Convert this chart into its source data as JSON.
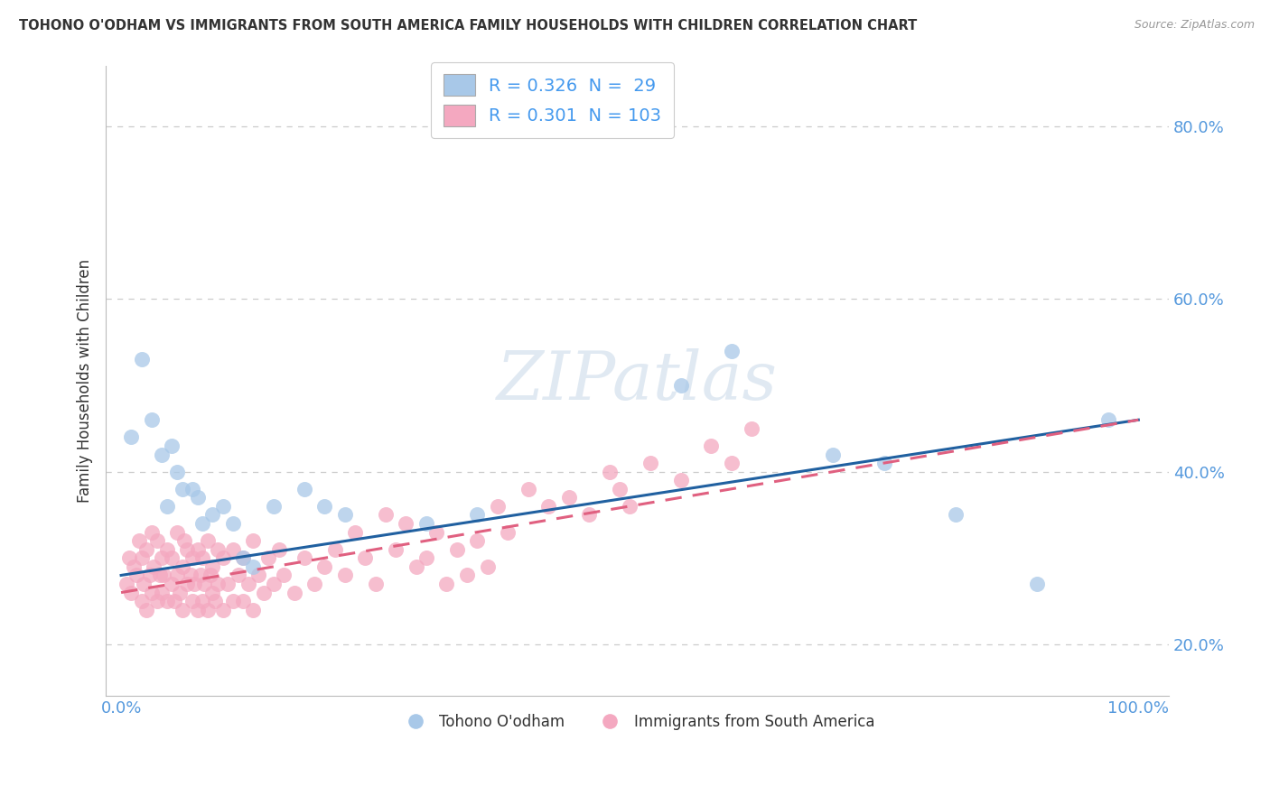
{
  "title": "TOHONO O'ODHAM VS IMMIGRANTS FROM SOUTH AMERICA FAMILY HOUSEHOLDS WITH CHILDREN CORRELATION CHART",
  "source": "Source: ZipAtlas.com",
  "ylabel": "Family Households with Children",
  "r_blue": 0.326,
  "n_blue": 29,
  "r_pink": 0.301,
  "n_pink": 103,
  "legend_label_blue": "Tohono O'odham",
  "legend_label_pink": "Immigrants from South America",
  "color_blue": "#a8c8e8",
  "color_pink": "#f4a8c0",
  "color_blue_line": "#2060a0",
  "color_pink_line": "#e06080",
  "watermark_text": "ZIPatlas",
  "blue_x": [
    1.0,
    2.0,
    3.0,
    4.0,
    4.5,
    5.0,
    5.5,
    6.0,
    7.0,
    7.5,
    8.0,
    9.0,
    10.0,
    11.0,
    12.0,
    13.0,
    15.0,
    18.0,
    20.0,
    22.0,
    30.0,
    35.0,
    55.0,
    60.0,
    70.0,
    75.0,
    82.0,
    90.0,
    97.0
  ],
  "blue_y": [
    44.0,
    53.0,
    46.0,
    42.0,
    36.0,
    43.0,
    40.0,
    38.0,
    38.0,
    37.0,
    34.0,
    35.0,
    36.0,
    34.0,
    30.0,
    29.0,
    36.0,
    38.0,
    36.0,
    35.0,
    34.0,
    35.0,
    50.0,
    54.0,
    42.0,
    41.0,
    35.0,
    27.0,
    46.0
  ],
  "pink_x": [
    0.5,
    0.8,
    1.0,
    1.2,
    1.5,
    1.8,
    2.0,
    2.0,
    2.2,
    2.5,
    2.5,
    2.8,
    3.0,
    3.0,
    3.2,
    3.5,
    3.5,
    3.8,
    4.0,
    4.0,
    4.2,
    4.5,
    4.5,
    5.0,
    5.0,
    5.2,
    5.5,
    5.5,
    5.8,
    6.0,
    6.0,
    6.2,
    6.5,
    6.5,
    6.8,
    7.0,
    7.0,
    7.2,
    7.5,
    7.5,
    7.8,
    8.0,
    8.0,
    8.2,
    8.5,
    8.5,
    8.8,
    9.0,
    9.0,
    9.2,
    9.5,
    9.5,
    10.0,
    10.0,
    10.5,
    11.0,
    11.0,
    11.5,
    12.0,
    12.0,
    12.5,
    13.0,
    13.0,
    13.5,
    14.0,
    14.5,
    15.0,
    15.5,
    16.0,
    17.0,
    18.0,
    19.0,
    20.0,
    21.0,
    22.0,
    23.0,
    24.0,
    25.0,
    26.0,
    27.0,
    28.0,
    29.0,
    30.0,
    31.0,
    32.0,
    33.0,
    34.0,
    35.0,
    36.0,
    37.0,
    38.0,
    40.0,
    42.0,
    44.0,
    46.0,
    48.0,
    49.0,
    50.0,
    52.0,
    55.0,
    58.0,
    60.0,
    62.0
  ],
  "pink_y": [
    27.0,
    30.0,
    26.0,
    29.0,
    28.0,
    32.0,
    25.0,
    30.0,
    27.0,
    24.0,
    31.0,
    28.0,
    26.0,
    33.0,
    29.0,
    25.0,
    32.0,
    28.0,
    26.0,
    30.0,
    28.0,
    25.0,
    31.0,
    27.0,
    30.0,
    25.0,
    28.0,
    33.0,
    26.0,
    29.0,
    24.0,
    32.0,
    27.0,
    31.0,
    28.0,
    25.0,
    30.0,
    27.0,
    24.0,
    31.0,
    28.0,
    25.0,
    30.0,
    27.0,
    24.0,
    32.0,
    28.0,
    26.0,
    29.0,
    25.0,
    31.0,
    27.0,
    24.0,
    30.0,
    27.0,
    25.0,
    31.0,
    28.0,
    25.0,
    30.0,
    27.0,
    24.0,
    32.0,
    28.0,
    26.0,
    30.0,
    27.0,
    31.0,
    28.0,
    26.0,
    30.0,
    27.0,
    29.0,
    31.0,
    28.0,
    33.0,
    30.0,
    27.0,
    35.0,
    31.0,
    34.0,
    29.0,
    30.0,
    33.0,
    27.0,
    31.0,
    28.0,
    32.0,
    29.0,
    36.0,
    33.0,
    38.0,
    36.0,
    37.0,
    35.0,
    40.0,
    38.0,
    36.0,
    41.0,
    39.0,
    43.0,
    41.0,
    45.0
  ],
  "ylim_min": 14.0,
  "ylim_max": 87.0,
  "xlim_min": -1.5,
  "xlim_max": 103.0,
  "yticks": [
    20.0,
    40.0,
    60.0,
    80.0
  ],
  "ytick_labels": [
    "20.0%",
    "40.0%",
    "60.0%",
    "80.0%"
  ],
  "xtick_positions": [
    0,
    100
  ],
  "xtick_labels": [
    "0.0%",
    "100.0%"
  ],
  "blue_line_x0": 0.0,
  "blue_line_y0": 28.0,
  "blue_line_x1": 100.0,
  "blue_line_y1": 46.0,
  "pink_line_x0": 0.0,
  "pink_line_y0": 26.0,
  "pink_line_x1": 100.0,
  "pink_line_y1": 46.0,
  "grid_color": "#cccccc",
  "bg_color": "#ffffff",
  "label_color": "#4499ee",
  "title_color": "#333333",
  "tick_color": "#5599dd"
}
